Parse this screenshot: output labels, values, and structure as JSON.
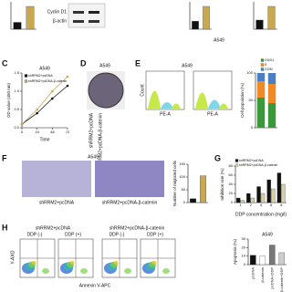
{
  "panels": {
    "letters": [
      "C",
      "D",
      "E",
      "F",
      "G",
      "H"
    ],
    "cell_line": "A549",
    "blot_labels": [
      "Cyclin D1",
      "β-actin"
    ],
    "group_a": "shRRM2+pcDNA",
    "group_b": "shRRM2+pcDNA-β-catenin",
    "ddp_neg": "DDP (-)",
    "ddp_pos": "DDP (+)",
    "flow_y": "Y-AXO",
    "flow_x": "Annexin V-APC",
    "hist_y": "Count",
    "hist_x": "PE-A"
  },
  "chart_data": [
    {
      "type": "bar",
      "categories": [
        null,
        null
      ],
      "values": [
        0.3,
        1.0
      ],
      "colors": [
        "#111111",
        "#c8a951"
      ],
      "ylim": [
        0,
        1.2
      ]
    },
    {
      "type": "bar",
      "categories": [
        null,
        null
      ],
      "values": [
        0.35,
        1.0
      ],
      "colors": [
        "#111111",
        "#c8a951"
      ],
      "ylim": [
        0,
        1.2
      ]
    },
    {
      "type": "bar",
      "categories": [
        null,
        null
      ],
      "values": [
        0.4,
        1.0
      ],
      "colors": [
        "#111111",
        "#c8a951"
      ],
      "ylim": [
        0,
        1.2
      ]
    },
    {
      "type": "line",
      "title": "A549",
      "xlabel": "Time",
      "ylabel": "OD value (450 nm)",
      "x": [
        0,
        24,
        48,
        72
      ],
      "xlim": [
        0,
        72
      ],
      "xticks": [
        0,
        24,
        48,
        72
      ],
      "ylim": [
        0,
        1.5
      ],
      "yticks": [
        {
          "value": 0,
          "label": "0.0"
        },
        {
          "value": 0.5,
          "label": "0.5"
        },
        {
          "value": 1,
          "label": "1.0"
        },
        {
          "value": 1.5,
          "label": "1.5"
        }
      ],
      "series": [
        {
          "name": "shRRM2+pcDNA",
          "color": "#111111",
          "values": [
            0.1,
            0.4,
            0.8,
            1.15
          ]
        },
        {
          "name": "shRRM2+pcDNA-β-catenin",
          "color": "#c8a951",
          "values": [
            0.1,
            0.5,
            1.0,
            1.4
          ]
        }
      ]
    },
    {
      "type": "bar",
      "stacked": true,
      "ylabel": "Cell population (%)",
      "categories": [
        null,
        null
      ],
      "ylim": [
        0,
        100
      ],
      "yticks": [
        0,
        50,
        100
      ],
      "series": [
        {
          "name": "G0/G1",
          "color": "#3a9a3a",
          "values": [
            55,
            45
          ]
        },
        {
          "name": "S",
          "color": "#f08a24",
          "values": [
            30,
            35
          ]
        },
        {
          "name": "G2/M",
          "color": "#4a7fc1",
          "values": [
            15,
            20
          ]
        }
      ]
    },
    {
      "type": "bar",
      "ylabel": "Number of migrated cells",
      "categories": [
        null,
        null
      ],
      "values": [
        15,
        105
      ],
      "colors": [
        "#111111",
        "#c8a951"
      ],
      "ylim": [
        0,
        150
      ],
      "yticks": [
        0,
        50,
        100,
        150
      ]
    },
    {
      "type": "bar",
      "xlabel": "DDP concentration (mg/l)",
      "ylabel": "Inhibition rate (%)",
      "categories": [
        "1",
        "2",
        "4",
        "6",
        "8"
      ],
      "ylim": [
        0,
        80
      ],
      "yticks": [
        0,
        20,
        40,
        60,
        80
      ],
      "series": [
        {
          "name": "shRRM2+pcDNA",
          "color": "#111111",
          "values": [
            10,
            20,
            35,
            50,
            65
          ]
        },
        {
          "name": "shRRM2+pcDNA-β-catenin",
          "color": "#d8cfa8",
          "values": [
            5,
            10,
            20,
            30,
            40
          ]
        }
      ]
    },
    {
      "type": "bar",
      "title": "A549",
      "ylabel": "Apoptosis (%)",
      "categories": [
        "pcDNA",
        "β-catenin",
        "pcDNA+DDP",
        "β-catenin+DDP"
      ],
      "values": [
        11,
        10,
        23,
        14
      ],
      "colors": [
        "#111111",
        "#ffffff",
        "#777777",
        "#cccccc"
      ],
      "ylim": [
        0,
        30
      ],
      "yticks": [
        0,
        10,
        20,
        30
      ]
    }
  ]
}
